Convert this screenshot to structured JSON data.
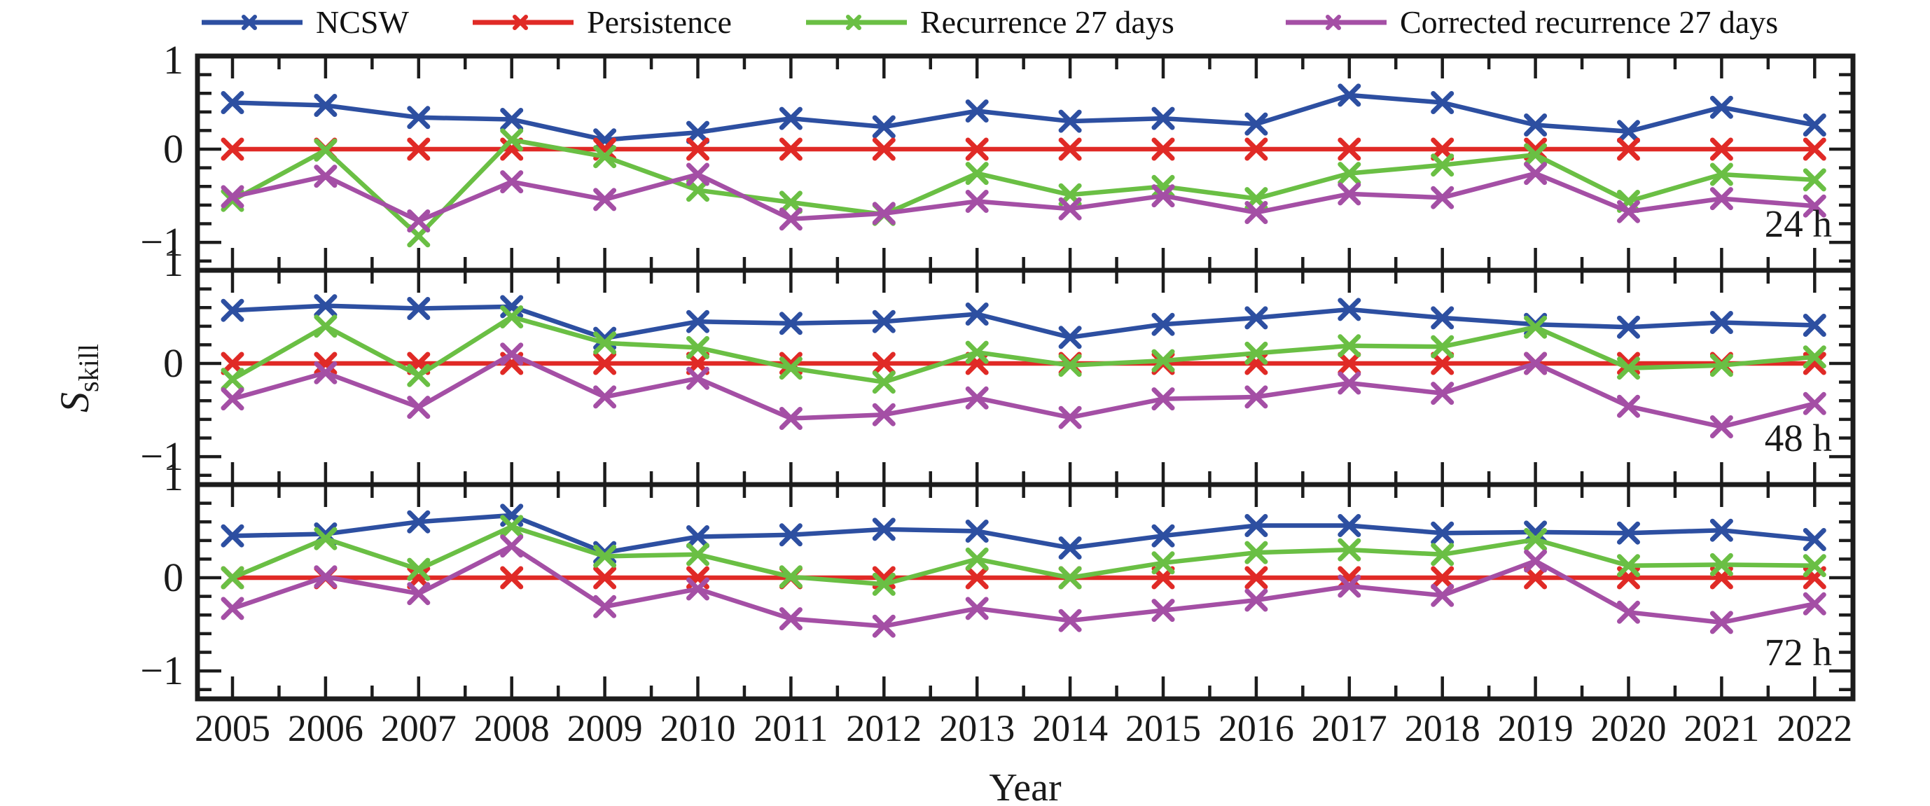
{
  "legend": [
    {
      "label": "NCSW",
      "color": "#2d4fa1"
    },
    {
      "label": "Persistence",
      "color": "#e02a26"
    },
    {
      "label": "Recurrence 27 days",
      "color": "#6abf44"
    },
    {
      "label": "Corrected recurrence 27 days",
      "color": "#a44fa5"
    }
  ],
  "axes": {
    "xlabel": "Year",
    "ylabel_main": "S",
    "ylabel_sub": "skill",
    "ytick_labels": [
      "1",
      "0",
      "−1"
    ],
    "year_labels": [
      "2005",
      "2006",
      "2007",
      "2008",
      "2009",
      "2010",
      "2011",
      "2012",
      "2013",
      "2014",
      "2015",
      "2016",
      "2017",
      "2018",
      "2019",
      "2020",
      "2021",
      "2022"
    ]
  },
  "chart_data": [
    {
      "type": "line",
      "panel_label": "24 h",
      "x": [
        2005,
        2006,
        2007,
        2008,
        2009,
        2010,
        2011,
        2012,
        2013,
        2014,
        2015,
        2016,
        2017,
        2018,
        2019,
        2020,
        2021,
        2022
      ],
      "ylim": [
        -1.3,
        1.0
      ],
      "yticks_major": [
        1,
        0,
        -1
      ],
      "yticks_minor": [
        0.8,
        0.6,
        0.4,
        0.2,
        -0.2,
        -0.4,
        -0.6,
        -0.8,
        -1.2
      ],
      "ylabel": "Sskill",
      "grid": false,
      "series": [
        {
          "name": "NCSW",
          "color": "#2d4fa1",
          "marker": "x",
          "values": [
            0.5,
            0.47,
            0.34,
            0.32,
            0.1,
            0.18,
            0.33,
            0.24,
            0.41,
            0.3,
            0.33,
            0.27,
            0.58,
            0.5,
            0.26,
            0.19,
            0.45,
            0.26
          ]
        },
        {
          "name": "Persistence",
          "color": "#e02a26",
          "marker": "x",
          "values": [
            0,
            0,
            0,
            0,
            0,
            0,
            0,
            0,
            0,
            0,
            0,
            0,
            0,
            0,
            0,
            0,
            0,
            0
          ]
        },
        {
          "name": "Recurrence 27 days",
          "color": "#6abf44",
          "marker": "x",
          "values": [
            -0.55,
            -0.01,
            -0.93,
            0.1,
            -0.08,
            -0.44,
            -0.57,
            -0.7,
            -0.26,
            -0.49,
            -0.4,
            -0.53,
            -0.26,
            -0.17,
            -0.06,
            -0.56,
            -0.27,
            -0.33
          ]
        },
        {
          "name": "Corrected recurrence 27 days",
          "color": "#a44fa5",
          "marker": "x",
          "values": [
            -0.51,
            -0.29,
            -0.77,
            -0.35,
            -0.54,
            -0.27,
            -0.75,
            -0.69,
            -0.56,
            -0.64,
            -0.5,
            -0.68,
            -0.48,
            -0.52,
            -0.26,
            -0.67,
            -0.53,
            -0.61
          ]
        }
      ]
    },
    {
      "type": "line",
      "panel_label": "48 h",
      "x": [
        2005,
        2006,
        2007,
        2008,
        2009,
        2010,
        2011,
        2012,
        2013,
        2014,
        2015,
        2016,
        2017,
        2018,
        2019,
        2020,
        2021,
        2022
      ],
      "ylim": [
        -1.3,
        1.0
      ],
      "yticks_major": [
        1,
        0,
        -1
      ],
      "yticks_minor": [
        0.8,
        0.6,
        0.4,
        0.2,
        -0.2,
        -0.4,
        -0.6,
        -0.8,
        -1.2
      ],
      "ylabel": "Sskill",
      "grid": false,
      "series": [
        {
          "name": "NCSW",
          "color": "#2d4fa1",
          "marker": "x",
          "values": [
            0.57,
            0.62,
            0.59,
            0.61,
            0.27,
            0.45,
            0.43,
            0.45,
            0.53,
            0.28,
            0.42,
            0.49,
            0.58,
            0.49,
            0.42,
            0.39,
            0.44,
            0.41
          ]
        },
        {
          "name": "Persistence",
          "color": "#e02a26",
          "marker": "x",
          "values": [
            0,
            0,
            0,
            0,
            0,
            0,
            0,
            0,
            0,
            0,
            0,
            0,
            0,
            0,
            0,
            0,
            0,
            0
          ]
        },
        {
          "name": "Recurrence 27 days",
          "color": "#6abf44",
          "marker": "x",
          "values": [
            -0.17,
            0.4,
            -0.13,
            0.5,
            0.22,
            0.17,
            -0.05,
            -0.2,
            0.12,
            -0.02,
            0.03,
            0.11,
            0.19,
            0.18,
            0.39,
            -0.05,
            -0.02,
            0.07
          ]
        },
        {
          "name": "Corrected recurrence 27 days",
          "color": "#a44fa5",
          "marker": "x",
          "values": [
            -0.38,
            -0.1,
            -0.47,
            0.1,
            -0.36,
            -0.16,
            -0.59,
            -0.55,
            -0.37,
            -0.58,
            -0.38,
            -0.36,
            -0.21,
            -0.32,
            0.0,
            -0.46,
            -0.68,
            -0.43
          ]
        }
      ]
    },
    {
      "type": "line",
      "panel_label": "72 h",
      "x": [
        2005,
        2006,
        2007,
        2008,
        2009,
        2010,
        2011,
        2012,
        2013,
        2014,
        2015,
        2016,
        2017,
        2018,
        2019,
        2020,
        2021,
        2022
      ],
      "ylim": [
        -1.3,
        1.0
      ],
      "yticks_major": [
        1,
        0,
        -1
      ],
      "yticks_minor": [
        0.8,
        0.6,
        0.4,
        0.2,
        -0.2,
        -0.4,
        -0.6,
        -0.8,
        -1.2
      ],
      "ylabel": "Sskill",
      "grid": false,
      "series": [
        {
          "name": "NCSW",
          "color": "#2d4fa1",
          "marker": "x",
          "values": [
            0.45,
            0.47,
            0.6,
            0.67,
            0.27,
            0.44,
            0.46,
            0.52,
            0.5,
            0.32,
            0.45,
            0.56,
            0.56,
            0.48,
            0.49,
            0.48,
            0.51,
            0.41
          ]
        },
        {
          "name": "Persistence",
          "color": "#e02a26",
          "marker": "x",
          "values": [
            0,
            0,
            0,
            0,
            0,
            0,
            0,
            0,
            0,
            0,
            0,
            0,
            0,
            0,
            0,
            0,
            0,
            0
          ]
        },
        {
          "name": "Recurrence 27 days",
          "color": "#6abf44",
          "marker": "x",
          "values": [
            0.0,
            0.42,
            0.09,
            0.55,
            0.23,
            0.25,
            0.01,
            -0.07,
            0.2,
            0.0,
            0.16,
            0.27,
            0.3,
            0.25,
            0.41,
            0.13,
            0.14,
            0.13
          ]
        },
        {
          "name": "Corrected recurrence 27 days",
          "color": "#a44fa5",
          "marker": "x",
          "values": [
            -0.33,
            0.01,
            -0.17,
            0.34,
            -0.31,
            -0.12,
            -0.44,
            -0.52,
            -0.33,
            -0.46,
            -0.35,
            -0.24,
            -0.09,
            -0.19,
            0.18,
            -0.37,
            -0.48,
            -0.28
          ]
        }
      ]
    }
  ]
}
